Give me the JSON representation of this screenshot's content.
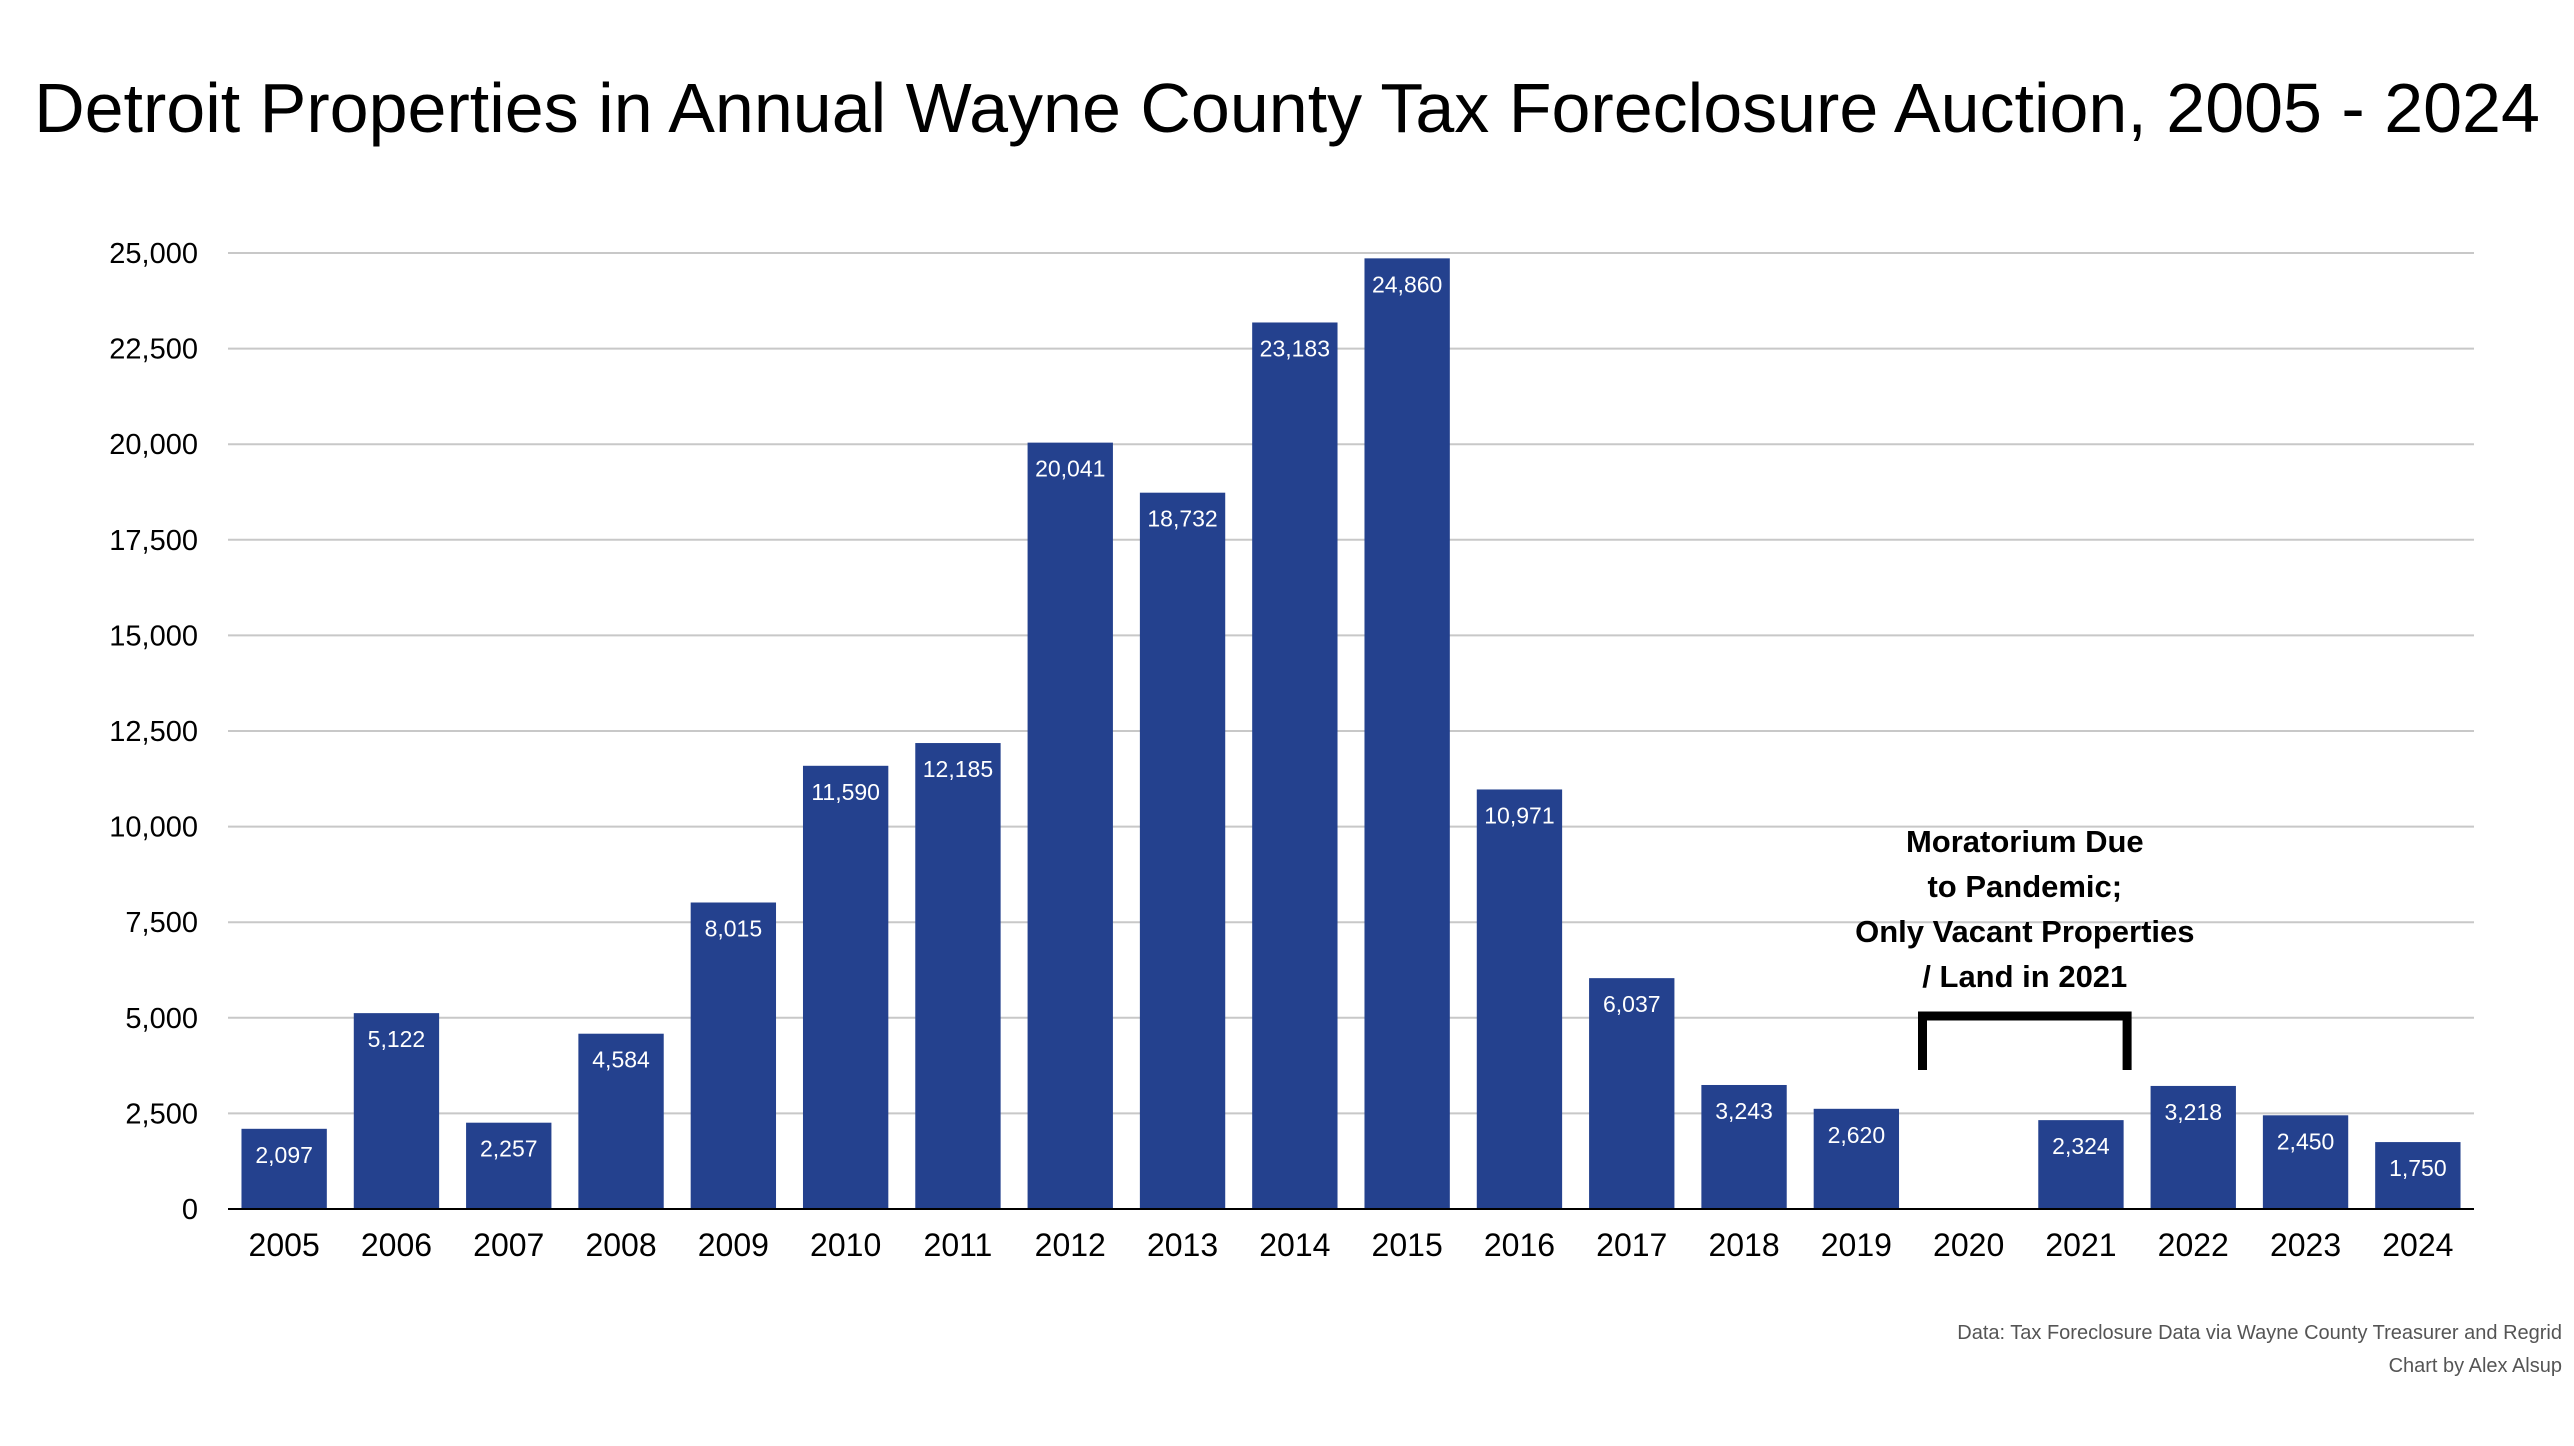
{
  "chart_data": {
    "type": "bar",
    "title": "Detroit Properties in Annual Wayne County Tax Foreclosure Auction, 2005 - 2024",
    "categories": [
      "2005",
      "2006",
      "2007",
      "2008",
      "2009",
      "2010",
      "2011",
      "2012",
      "2013",
      "2014",
      "2015",
      "2016",
      "2017",
      "2018",
      "2019",
      "2020",
      "2021",
      "2022",
      "2023",
      "2024"
    ],
    "values": [
      2097,
      5122,
      2257,
      4584,
      8015,
      11590,
      12185,
      20041,
      18732,
      23183,
      24860,
      10971,
      6037,
      3243,
      2620,
      null,
      2324,
      3218,
      2450,
      1750
    ],
    "data_labels": [
      "2,097",
      "5,122",
      "2,257",
      "4,584",
      "8,015",
      "11,590",
      "12,185",
      "20,041",
      "18,732",
      "23,183",
      "24,860",
      "10,971",
      "6,037",
      "3,243",
      "2,620",
      "",
      "2,324",
      "3,218",
      "2,450",
      "1,750"
    ],
    "ylim": [
      0,
      25000
    ],
    "yticks": [
      0,
      2500,
      5000,
      7500,
      10000,
      12500,
      15000,
      17500,
      20000,
      22500,
      25000
    ],
    "ytick_labels": [
      "0",
      "2,500",
      "5,000",
      "7,500",
      "10,000",
      "12,500",
      "15,000",
      "17,500",
      "20,000",
      "22,500",
      "25,000"
    ],
    "xlabel": "",
    "ylabel": "",
    "grid": true,
    "bar_color": "#24418e",
    "annotation": {
      "text_lines": [
        "Moratorium Due",
        "to Pandemic;",
        "Only Vacant Properties",
        "/ Land in 2021"
      ],
      "bracket_from": "2020",
      "bracket_to": "2021",
      "bracket_color": "#000000"
    }
  },
  "credits": {
    "data": "Data: Tax Foreclosure Data via Wayne County Treasurer and Regrid",
    "author": "Chart by Alex Alsup"
  }
}
